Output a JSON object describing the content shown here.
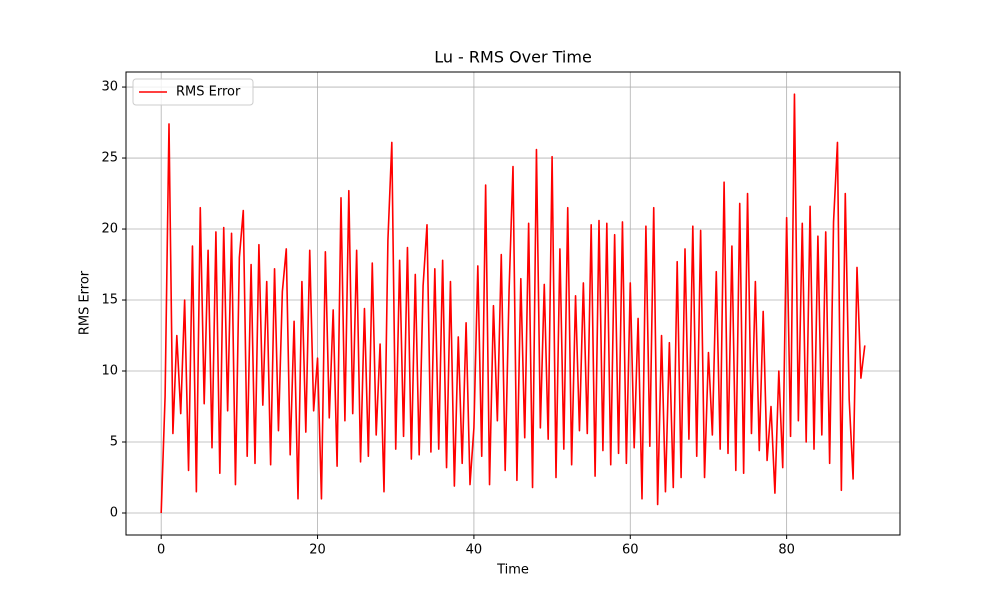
{
  "chart_data": {
    "type": "line",
    "title": "Lu - RMS Over Time",
    "x_label": "Time",
    "y_label": "RMS Error",
    "x": [
      0,
      0.5,
      1,
      1.5,
      2,
      2.5,
      3,
      3.5,
      4,
      4.5,
      5,
      5.5,
      6,
      6.5,
      7,
      7.5,
      8,
      8.5,
      9,
      9.5,
      10,
      10.5,
      11,
      11.5,
      12,
      12.5,
      13,
      13.5,
      14,
      14.5,
      15,
      15.5,
      16,
      16.5,
      17,
      17.5,
      18,
      18.5,
      19,
      19.5,
      20,
      20.5,
      21,
      21.5,
      22,
      22.5,
      23,
      23.5,
      24,
      24.5,
      25,
      25.5,
      26,
      26.5,
      27,
      27.5,
      28,
      28.5,
      29,
      29.5,
      30,
      30.5,
      31,
      31.5,
      32,
      32.5,
      33,
      33.5,
      34,
      34.5,
      35,
      35.5,
      36,
      36.5,
      37,
      37.5,
      38,
      38.5,
      39,
      39.5,
      40,
      40.5,
      41,
      41.5,
      42,
      42.5,
      43,
      43.5,
      44,
      44.5,
      45,
      45.5,
      46,
      46.5,
      47,
      47.5,
      48,
      48.5,
      49,
      49.5,
      50,
      50.5,
      51,
      51.5,
      52,
      52.5,
      53,
      53.5,
      54,
      54.5,
      55,
      55.5,
      56,
      56.5,
      57,
      57.5,
      58,
      58.5,
      59,
      59.5,
      60,
      60.5,
      61,
      61.5,
      62,
      62.5,
      63,
      63.5,
      64,
      64.5,
      65,
      65.5,
      66,
      66.5,
      67,
      67.5,
      68,
      68.5,
      69,
      69.5,
      70,
      70.5,
      71,
      71.5,
      72,
      72.5,
      73,
      73.5,
      74,
      74.5,
      75,
      75.5,
      76,
      76.5,
      77,
      77.5,
      78,
      78.5,
      79,
      79.5,
      80,
      80.5,
      81,
      81.5,
      82,
      82.5,
      83,
      83.5,
      84,
      84.5,
      85,
      85.5,
      86,
      86.5,
      87,
      87.5,
      88,
      88.5,
      89,
      89.5,
      90
    ],
    "series": [
      {
        "name": "RMS Error",
        "color": "#ff0000",
        "values": [
          0,
          8.2,
          27.4,
          5.6,
          12.5,
          7,
          15,
          3,
          18.8,
          1.5,
          21.5,
          7.7,
          18.5,
          4.6,
          19.8,
          2.8,
          20.1,
          7.2,
          19.7,
          2,
          18,
          21.3,
          4,
          17.5,
          3.5,
          18.9,
          7.6,
          16.3,
          3.4,
          17.2,
          5.8,
          15.6,
          18.6,
          4.1,
          13.5,
          1,
          16.3,
          5.7,
          18.5,
          7.2,
          10.9,
          1,
          18.4,
          6.7,
          14.3,
          3.3,
          22.2,
          6.5,
          22.7,
          7,
          18.5,
          3.6,
          14.4,
          4,
          17.6,
          5.5,
          11.9,
          1.5,
          19.2,
          26.1,
          4.5,
          17.8,
          5.4,
          18.7,
          3.8,
          16.8,
          4.1,
          16,
          20.3,
          4.3,
          17.2,
          4.5,
          17.8,
          3.2,
          16.3,
          1.9,
          12.4,
          3.5,
          13.4,
          2,
          6,
          17.4,
          4,
          23.1,
          2,
          14.6,
          6.5,
          18.2,
          3,
          15.7,
          24.4,
          2.3,
          16.5,
          5.3,
          20.4,
          1.8,
          25.6,
          6,
          16.1,
          5.2,
          25.1,
          2.5,
          18.6,
          4.5,
          21.5,
          3.4,
          15.3,
          5.8,
          16.2,
          5.6,
          20.3,
          2.6,
          20.6,
          4.4,
          20.4,
          3.4,
          19.6,
          4.2,
          20.5,
          3.5,
          16.2,
          4.6,
          13.7,
          1,
          20.2,
          4.7,
          21.5,
          0.6,
          12.5,
          1.5,
          12,
          1.8,
          17.7,
          2.5,
          18.6,
          5.2,
          20.2,
          4,
          19.9,
          2.5,
          11.3,
          5.5,
          17,
          4.5,
          23.3,
          4.2,
          18.8,
          3,
          21.8,
          2.8,
          22.5,
          5.6,
          16.3,
          4.4,
          14.2,
          3.7,
          7.5,
          1.4,
          10,
          3.2,
          20.8,
          5.4,
          29.5,
          6.5,
          20.4,
          5,
          21.6,
          4.5,
          19.5,
          5.5,
          19.8,
          3.5,
          20.5,
          26.1,
          1.6,
          22.5,
          8,
          2.4,
          17.3,
          9.5,
          11.8
        ]
      }
    ],
    "xlim": [
      -4.5,
      94.5
    ],
    "ylim": [
      -1.55,
      31.06
    ],
    "xticks": [
      0,
      20,
      40,
      60,
      80
    ],
    "yticks": [
      0,
      5,
      10,
      15,
      20,
      25,
      30
    ],
    "grid": true,
    "legend": "upper-left"
  }
}
